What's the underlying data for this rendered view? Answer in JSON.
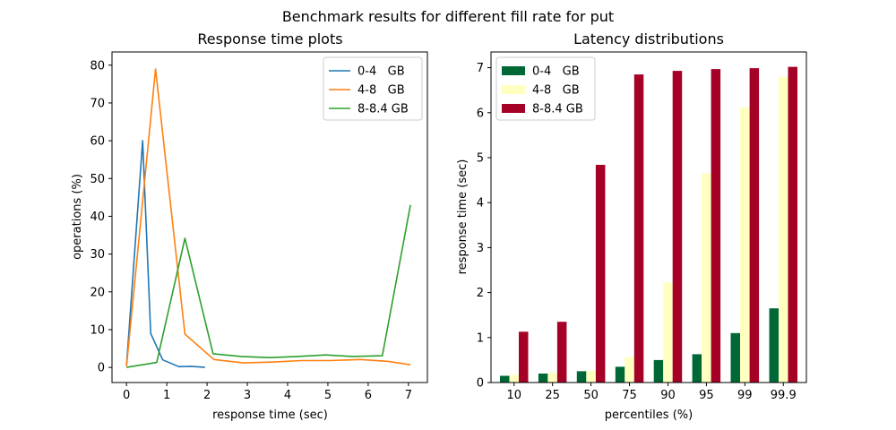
{
  "figure": {
    "suptitle": "Benchmark results for different fill rate for put"
  },
  "chart_data": [
    {
      "type": "line",
      "title": "Response time plots",
      "xlabel": "response time (sec)",
      "ylabel": "operations (%)",
      "xlim": [
        -0.36,
        7.47
      ],
      "ylim": [
        -4,
        83.5
      ],
      "xticks": [
        0,
        1,
        2,
        3,
        4,
        5,
        6,
        7
      ],
      "xtick_labels": [
        "0",
        "1",
        "2",
        "3",
        "4",
        "5",
        "6",
        "7"
      ],
      "yticks": [
        0,
        10,
        20,
        30,
        40,
        50,
        60,
        70,
        80
      ],
      "ytick_labels": [
        "0",
        "10",
        "20",
        "30",
        "40",
        "50",
        "60",
        "70",
        "80"
      ],
      "grid": false,
      "legend_position": "top-right",
      "series": [
        {
          "name": "0-4   GB",
          "color": "#1f77b4",
          "x": [
            0,
            0.4,
            0.6,
            0.9,
            1.3,
            1.6,
            1.95
          ],
          "y": [
            0.5,
            60,
            9,
            2,
            0.2,
            0.3,
            0
          ]
        },
        {
          "name": "4-8   GB",
          "color": "#ff7f0e",
          "x": [
            0,
            0.72,
            1.45,
            2.17,
            2.9,
            3.6,
            4.35,
            5.05,
            5.8,
            6.5,
            7.05
          ],
          "y": [
            0.3,
            79,
            8.8,
            2.1,
            1.2,
            1.4,
            1.8,
            1.8,
            2.1,
            1.6,
            0.7
          ]
        },
        {
          "name": "8-8.4 GB",
          "color": "#2ca02c",
          "x": [
            0,
            0.75,
            1.45,
            2.15,
            2.85,
            3.55,
            4.25,
            4.95,
            5.6,
            6.35,
            7.05
          ],
          "y": [
            0,
            1.3,
            34.2,
            3.6,
            2.9,
            2.6,
            2.9,
            3.3,
            2.9,
            3.1,
            43
          ]
        }
      ]
    },
    {
      "type": "bar",
      "title": "Latency distributions",
      "xlabel": "percentiles (%)",
      "ylabel": "response time (sec)",
      "categories": [
        "10",
        "25",
        "50",
        "75",
        "90",
        "95",
        "99",
        "99.9"
      ],
      "ylim": [
        0,
        7.35
      ],
      "yticks": [
        0,
        1,
        2,
        3,
        4,
        5,
        6,
        7
      ],
      "ytick_labels": [
        "0",
        "1",
        "2",
        "3",
        "4",
        "5",
        "6",
        "7"
      ],
      "grid": false,
      "legend_position": "top-left",
      "series": [
        {
          "name": "0-4   GB",
          "color": "#006837",
          "values": [
            0.15,
            0.2,
            0.25,
            0.35,
            0.5,
            0.63,
            1.1,
            1.65
          ]
        },
        {
          "name": "4-8   GB",
          "color": "#ffffbf",
          "values": [
            0.17,
            0.22,
            0.26,
            0.57,
            2.22,
            4.65,
            6.12,
            6.8
          ]
        },
        {
          "name": "8-8.4 GB",
          "color": "#a50026",
          "values": [
            1.13,
            1.35,
            4.84,
            6.85,
            6.93,
            6.97,
            6.99,
            7.02
          ]
        }
      ]
    }
  ]
}
